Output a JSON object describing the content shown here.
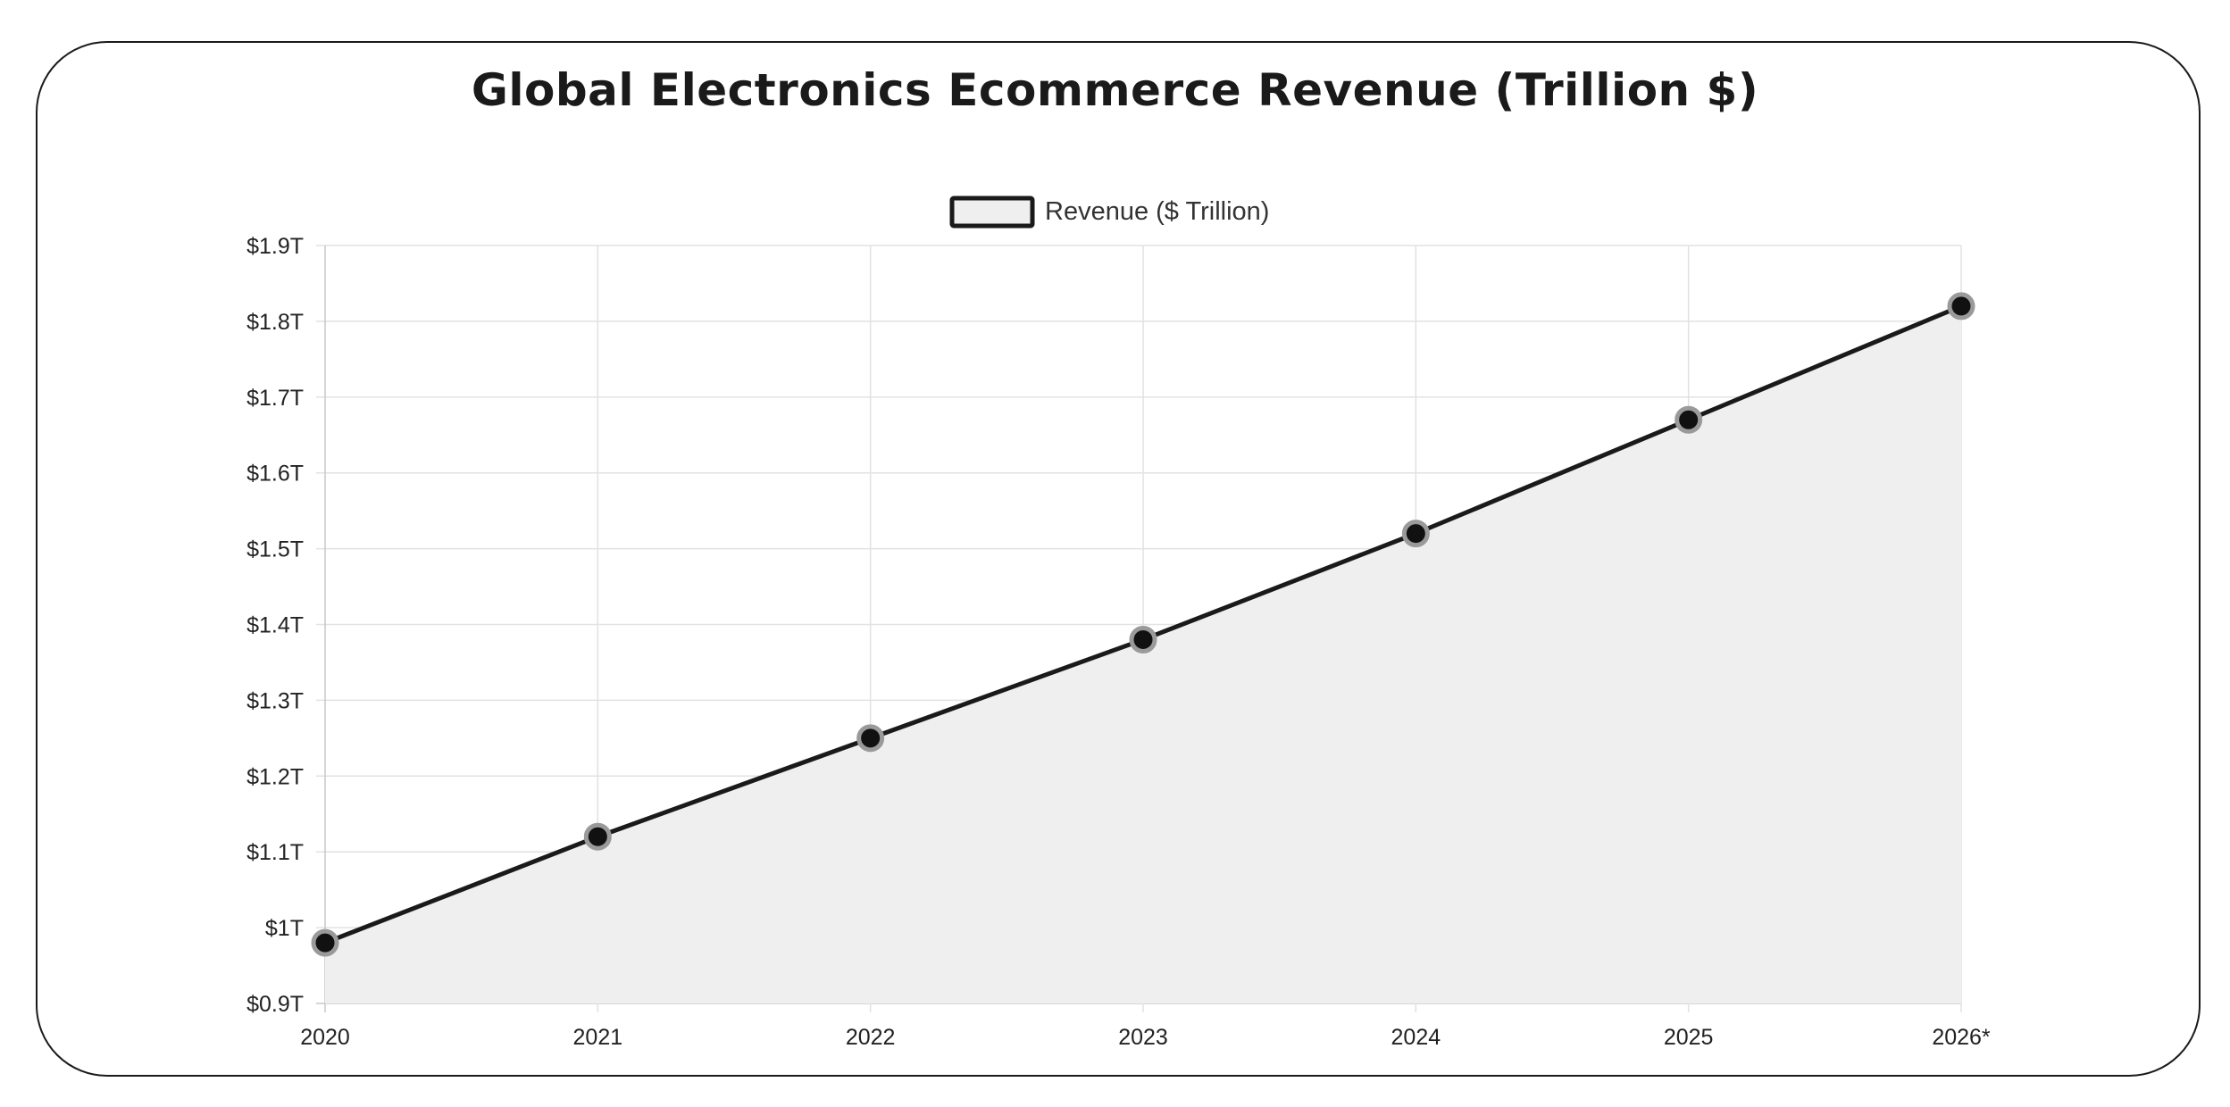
{
  "chart_data": {
    "type": "area",
    "title": "Global Electronics Ecommerce Revenue (Trillion $)",
    "categories": [
      "2020",
      "2021",
      "2022",
      "2023",
      "2024",
      "2025",
      "2026*"
    ],
    "series": [
      {
        "name": "Revenue ($ Trillion)",
        "values": [
          0.98,
          1.12,
          1.25,
          1.38,
          1.52,
          1.67,
          1.82
        ]
      }
    ],
    "ylim": [
      0.9,
      1.9
    ],
    "yticks": [
      0.9,
      1.0,
      1.1,
      1.2,
      1.3,
      1.4,
      1.5,
      1.6,
      1.7,
      1.8,
      1.9
    ],
    "ytick_labels": [
      "$0.9T",
      "$1T",
      "$1.1T",
      "$1.2T",
      "$1.3T",
      "$1.4T",
      "$1.5T",
      "$1.6T",
      "$1.7T",
      "$1.8T",
      "$1.9T"
    ],
    "xlabel": "",
    "ylabel": "",
    "grid": true,
    "legend_position": "top-center",
    "colors": {
      "line": "#1a1a1a",
      "fill": "#efefef",
      "point": "#111111",
      "point_border": "#9a9a9a",
      "grid": "#e2e2e2",
      "axis": "#c8c8c8"
    }
  }
}
